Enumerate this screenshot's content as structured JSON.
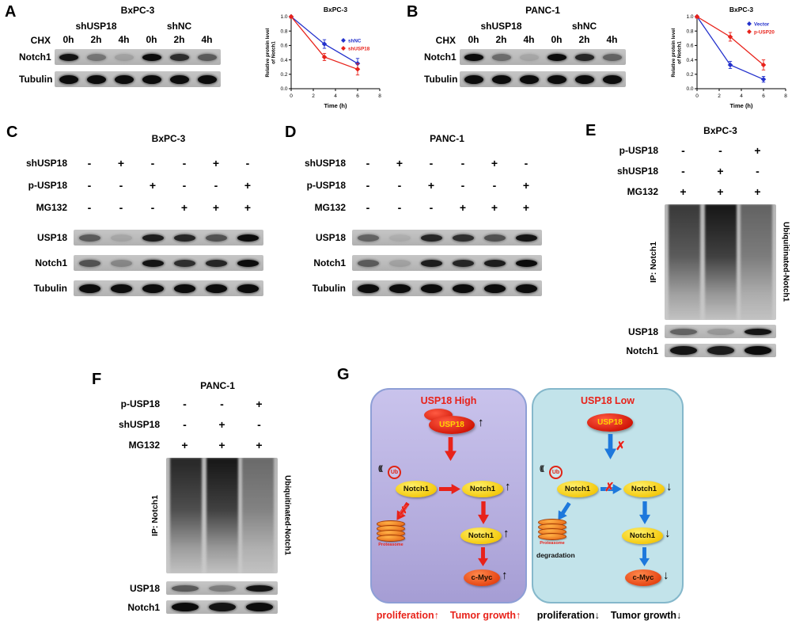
{
  "panels": {
    "A": {
      "letter": "A",
      "title": "BxPC-3",
      "chx": "CHX",
      "group1": "shUSP18",
      "group2": "shNC",
      "timepoints": [
        "0h",
        "2h",
        "4h",
        "0h",
        "2h",
        "4h"
      ],
      "blots": [
        {
          "label": "Notch1",
          "lanes": [
            0.95,
            0.4,
            0.15,
            1,
            0.8,
            0.55
          ]
        },
        {
          "label": "Tubulin",
          "lanes": [
            1,
            1,
            1,
            1,
            1,
            1
          ]
        }
      ]
    },
    "B": {
      "letter": "B",
      "title": "PANC-1",
      "chx": "CHX",
      "group1": "shUSP18",
      "group2": "shNC",
      "timepoints": [
        "0h",
        "2h",
        "4h",
        "0h",
        "2h",
        "4h"
      ],
      "blots": [
        {
          "label": "Notch1",
          "lanes": [
            1,
            0.45,
            0.12,
            1,
            0.85,
            0.5
          ]
        },
        {
          "label": "Tubulin",
          "lanes": [
            1,
            1,
            1,
            1,
            1,
            1
          ]
        }
      ]
    },
    "C": {
      "letter": "C",
      "title": "BxPC-3",
      "treatments": [
        {
          "label": "shUSP18",
          "values": [
            "-",
            "+",
            "-",
            "-",
            "+",
            "-"
          ]
        },
        {
          "label": "p-USP18",
          "values": [
            "-",
            "-",
            "+",
            "-",
            "-",
            "+"
          ]
        },
        {
          "label": "MG132",
          "values": [
            "-",
            "-",
            "-",
            "+",
            "+",
            "+"
          ]
        }
      ],
      "blots": [
        {
          "label": "USP18",
          "lanes": [
            0.55,
            0.12,
            0.9,
            0.85,
            0.6,
            1
          ]
        },
        {
          "label": "Notch1",
          "lanes": [
            0.6,
            0.3,
            0.95,
            0.8,
            0.85,
            1
          ]
        },
        {
          "label": "Tubulin",
          "lanes": [
            1,
            1,
            1,
            1,
            1,
            1
          ]
        }
      ]
    },
    "D": {
      "letter": "D",
      "title": "PANC-1",
      "treatments": [
        {
          "label": "shUSP18",
          "values": [
            "-",
            "+",
            "-",
            "-",
            "+",
            "-"
          ]
        },
        {
          "label": "p-USP18",
          "values": [
            "-",
            "-",
            "+",
            "-",
            "-",
            "+"
          ]
        },
        {
          "label": "MG132",
          "values": [
            "-",
            "-",
            "-",
            "+",
            "+",
            "+"
          ]
        }
      ],
      "blots": [
        {
          "label": "USP18",
          "lanes": [
            0.5,
            0.08,
            0.85,
            0.8,
            0.6,
            0.95
          ]
        },
        {
          "label": "Notch1",
          "lanes": [
            0.55,
            0.15,
            0.9,
            0.85,
            0.9,
            1
          ]
        },
        {
          "label": "Tubulin",
          "lanes": [
            1,
            1,
            1,
            1,
            1,
            1
          ]
        }
      ]
    },
    "E": {
      "letter": "E",
      "title": "BxPC-3",
      "treatments": [
        {
          "label": "p-USP18",
          "values": [
            "-",
            "-",
            "+"
          ]
        },
        {
          "label": "shUSP18",
          "values": [
            "-",
            "+",
            "-"
          ]
        },
        {
          "label": "MG132",
          "values": [
            "+",
            "+",
            "+"
          ]
        }
      ],
      "ip_label": "IP: Notch1",
      "smear_label": "Ubiquitinated-Notch1",
      "smear_lanes": [
        0.75,
        0.95,
        0.5
      ],
      "blots": [
        {
          "label": "USP18",
          "lanes": [
            0.5,
            0.2,
            0.95
          ]
        },
        {
          "label": "Notch1",
          "lanes": [
            0.95,
            0.9,
            1
          ]
        }
      ]
    },
    "F": {
      "letter": "F",
      "title": "PANC-1",
      "treatments": [
        {
          "label": "p-USP18",
          "values": [
            "-",
            "-",
            "+"
          ]
        },
        {
          "label": "shUSP18",
          "values": [
            "-",
            "+",
            "-"
          ]
        },
        {
          "label": "MG132",
          "values": [
            "+",
            "+",
            "+"
          ]
        }
      ],
      "ip_label": "IP: Notch1",
      "smear_label": "Ubiquitinated-Notch1",
      "smear_lanes": [
        0.85,
        0.95,
        0.45
      ],
      "blots": [
        {
          "label": "USP18",
          "lanes": [
            0.55,
            0.35,
            0.95
          ]
        },
        {
          "label": "Notch1",
          "lanes": [
            1,
            0.95,
            1
          ]
        }
      ]
    },
    "G": {
      "letter": "G",
      "up": "↑",
      "down": "↓",
      "cross": "✗",
      "coil": "(((",
      "left": {
        "title": "USP18 High",
        "usp18": "USP18",
        "ub": "Ub",
        "notch1": "Notch1",
        "proteasome": "Proteasome",
        "cmyc": "c-Myc",
        "footer": [
          "proliferation↑",
          "Tumor growth↑"
        ]
      },
      "right": {
        "title": "USP18 Low",
        "usp18": "USP18",
        "ub": "Ub",
        "notch1": "Notch1",
        "proteasome": "Proteasome",
        "degradation": "degradation",
        "cmyc": "c-Myc",
        "footer": [
          "proliferation↓",
          "Tumor growth↓"
        ]
      }
    }
  },
  "chart_data": [
    {
      "type": "line",
      "panel": "A",
      "title": "BxPC-3",
      "xlabel": "Time (h)",
      "ylabel": "Relative protein level of Notch1",
      "ylabel_lines": [
        "Relative protein level",
        "of Notch1"
      ],
      "x": [
        0,
        3,
        6
      ],
      "xlim": [
        0,
        8
      ],
      "ylim": [
        0,
        1.0
      ],
      "xticks": [
        0,
        2,
        4,
        6,
        8
      ],
      "yticks": [
        0.0,
        0.2,
        0.4,
        0.6,
        0.8,
        1.0
      ],
      "legend_pos": "right-middle",
      "series": [
        {
          "name": "shNC",
          "color": "#2331cc",
          "marker": "diamond",
          "values": [
            1.0,
            0.62,
            0.35
          ],
          "errors": [
            0.02,
            0.06,
            0.07
          ]
        },
        {
          "name": "shUSP18",
          "color": "#e8221a",
          "marker": "diamond",
          "values": [
            1.0,
            0.44,
            0.27
          ],
          "errors": [
            0.02,
            0.05,
            0.08
          ]
        }
      ]
    },
    {
      "type": "line",
      "panel": "B",
      "title": "BxPC-3",
      "xlabel": "Time (h)",
      "ylabel": "Relative protein level of Notch1",
      "ylabel_lines": [
        "Relative protein level",
        "of Notch1"
      ],
      "x": [
        0,
        3,
        6
      ],
      "xlim": [
        0,
        8
      ],
      "ylim": [
        0,
        1.0
      ],
      "xticks": [
        0,
        2,
        4,
        6,
        8
      ],
      "yticks": [
        0.0,
        0.2,
        0.4,
        0.6,
        0.8,
        1.0
      ],
      "legend_pos": "top-right",
      "series": [
        {
          "name": "Vector",
          "color": "#2331cc",
          "marker": "diamond",
          "values": [
            1.0,
            0.33,
            0.13
          ],
          "errors": [
            0.02,
            0.05,
            0.04
          ]
        },
        {
          "name": "p-USP20",
          "color": "#e8221a",
          "marker": "diamond",
          "values": [
            1.0,
            0.72,
            0.33
          ],
          "errors": [
            0.02,
            0.06,
            0.07
          ]
        }
      ]
    }
  ]
}
